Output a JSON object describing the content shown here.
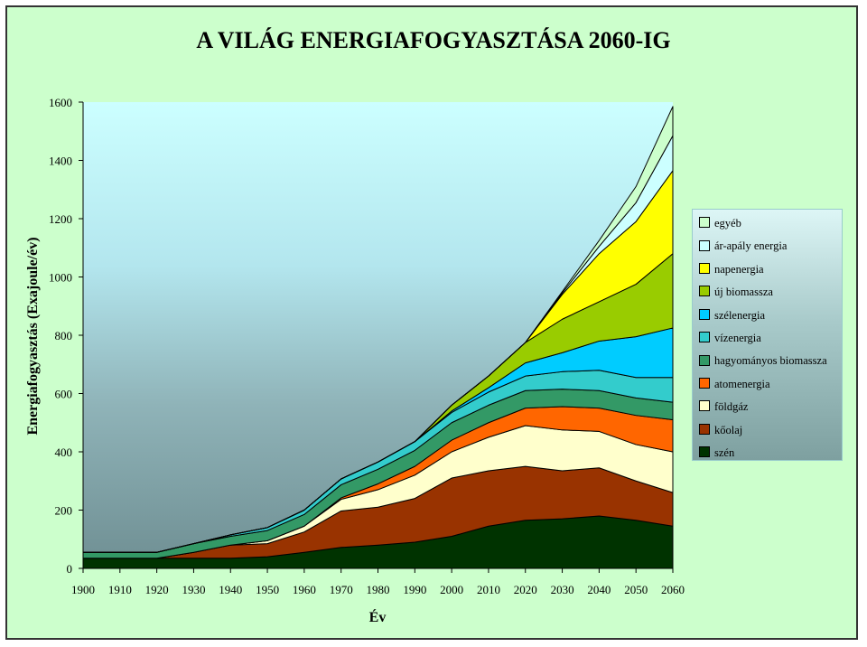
{
  "chart_data": {
    "type": "area",
    "stacked": true,
    "title": "A VILÁG ENERGIAFOGYASZTÁSA 2060-IG",
    "xlabel": "Év",
    "ylabel": "Energiafogyasztás (Exajoule/év)",
    "ylim": [
      0,
      1600
    ],
    "yticks": [
      0,
      200,
      400,
      600,
      800,
      1000,
      1200,
      1400,
      1600
    ],
    "x": [
      1900,
      1910,
      1920,
      1930,
      1940,
      1950,
      1960,
      1970,
      1980,
      1990,
      2000,
      2010,
      2020,
      2030,
      2040,
      2050,
      2060
    ],
    "grid": false,
    "legend_position": "right",
    "series": [
      {
        "name": "szén",
        "color": "#003300",
        "values": [
          35,
          35,
          35,
          35,
          35,
          40,
          55,
          72,
          80,
          90,
          110,
          145,
          165,
          170,
          180,
          165,
          145
        ]
      },
      {
        "name": "kőolaj",
        "color": "#993300",
        "values": [
          0,
          0,
          0,
          20,
          45,
          45,
          70,
          125,
          130,
          150,
          200,
          190,
          185,
          165,
          165,
          135,
          115
        ]
      },
      {
        "name": "földgáz",
        "color": "#ffffcc",
        "values": [
          0,
          0,
          0,
          0,
          0,
          10,
          20,
          40,
          60,
          80,
          90,
          115,
          140,
          140,
          125,
          125,
          140
        ]
      },
      {
        "name": "atomenergia",
        "color": "#ff6600",
        "values": [
          0,
          0,
          0,
          0,
          0,
          0,
          0,
          5,
          20,
          30,
          40,
          50,
          60,
          80,
          80,
          100,
          110
        ]
      },
      {
        "name": "hagyományos biomassza",
        "color": "#339966",
        "values": [
          20,
          20,
          20,
          30,
          30,
          35,
          40,
          45,
          50,
          55,
          60,
          60,
          60,
          60,
          60,
          60,
          60
        ]
      },
      {
        "name": "vízenergia",
        "color": "#33cccc",
        "values": [
          0,
          0,
          0,
          0,
          5,
          10,
          15,
          20,
          25,
          30,
          35,
          45,
          50,
          60,
          70,
          70,
          85
        ]
      },
      {
        "name": "szélenergia",
        "color": "#00ccff",
        "values": [
          0,
          0,
          0,
          0,
          0,
          0,
          0,
          0,
          0,
          0,
          5,
          15,
          45,
          65,
          100,
          140,
          170
        ]
      },
      {
        "name": "új biomassza",
        "color": "#99cc00",
        "values": [
          0,
          0,
          0,
          0,
          0,
          0,
          0,
          0,
          0,
          0,
          20,
          40,
          70,
          115,
          135,
          180,
          255
        ]
      },
      {
        "name": "napenergia",
        "color": "#ffff00",
        "values": [
          0,
          0,
          0,
          0,
          0,
          0,
          0,
          0,
          0,
          0,
          0,
          0,
          0,
          85,
          165,
          215,
          285
        ]
      },
      {
        "name": "ár-apály energia",
        "color": "#ccffff",
        "values": [
          0,
          0,
          0,
          0,
          0,
          0,
          0,
          0,
          0,
          0,
          0,
          0,
          0,
          5,
          25,
          65,
          120
        ]
      },
      {
        "name": "egyéb",
        "color": "#ccffcc",
        "values": [
          0,
          0,
          0,
          0,
          0,
          0,
          0,
          0,
          0,
          0,
          0,
          0,
          0,
          5,
          20,
          55,
          100
        ]
      }
    ]
  }
}
